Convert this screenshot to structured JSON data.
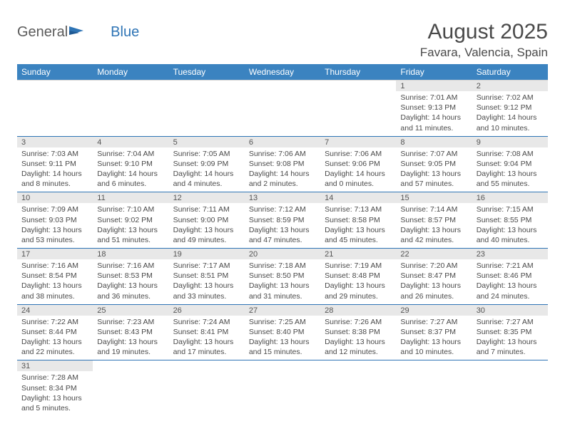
{
  "brand": {
    "part1": "General",
    "part2": "Blue"
  },
  "title": "August 2025",
  "location": "Favara, Valencia, Spain",
  "colors": {
    "header_bg": "#3b83c0",
    "header_text": "#ffffff",
    "daynum_bg": "#e8e8e8",
    "cell_border": "#2e74b5",
    "brand_accent": "#2e74b5",
    "text": "#4a4a4a"
  },
  "weekdays": [
    "Sunday",
    "Monday",
    "Tuesday",
    "Wednesday",
    "Thursday",
    "Friday",
    "Saturday"
  ],
  "weeks": [
    [
      null,
      null,
      null,
      null,
      null,
      {
        "n": "1",
        "sr": "Sunrise: 7:01 AM",
        "ss": "Sunset: 9:13 PM",
        "dl1": "Daylight: 14 hours",
        "dl2": "and 11 minutes."
      },
      {
        "n": "2",
        "sr": "Sunrise: 7:02 AM",
        "ss": "Sunset: 9:12 PM",
        "dl1": "Daylight: 14 hours",
        "dl2": "and 10 minutes."
      }
    ],
    [
      {
        "n": "3",
        "sr": "Sunrise: 7:03 AM",
        "ss": "Sunset: 9:11 PM",
        "dl1": "Daylight: 14 hours",
        "dl2": "and 8 minutes."
      },
      {
        "n": "4",
        "sr": "Sunrise: 7:04 AM",
        "ss": "Sunset: 9:10 PM",
        "dl1": "Daylight: 14 hours",
        "dl2": "and 6 minutes."
      },
      {
        "n": "5",
        "sr": "Sunrise: 7:05 AM",
        "ss": "Sunset: 9:09 PM",
        "dl1": "Daylight: 14 hours",
        "dl2": "and 4 minutes."
      },
      {
        "n": "6",
        "sr": "Sunrise: 7:06 AM",
        "ss": "Sunset: 9:08 PM",
        "dl1": "Daylight: 14 hours",
        "dl2": "and 2 minutes."
      },
      {
        "n": "7",
        "sr": "Sunrise: 7:06 AM",
        "ss": "Sunset: 9:06 PM",
        "dl1": "Daylight: 14 hours",
        "dl2": "and 0 minutes."
      },
      {
        "n": "8",
        "sr": "Sunrise: 7:07 AM",
        "ss": "Sunset: 9:05 PM",
        "dl1": "Daylight: 13 hours",
        "dl2": "and 57 minutes."
      },
      {
        "n": "9",
        "sr": "Sunrise: 7:08 AM",
        "ss": "Sunset: 9:04 PM",
        "dl1": "Daylight: 13 hours",
        "dl2": "and 55 minutes."
      }
    ],
    [
      {
        "n": "10",
        "sr": "Sunrise: 7:09 AM",
        "ss": "Sunset: 9:03 PM",
        "dl1": "Daylight: 13 hours",
        "dl2": "and 53 minutes."
      },
      {
        "n": "11",
        "sr": "Sunrise: 7:10 AM",
        "ss": "Sunset: 9:02 PM",
        "dl1": "Daylight: 13 hours",
        "dl2": "and 51 minutes."
      },
      {
        "n": "12",
        "sr": "Sunrise: 7:11 AM",
        "ss": "Sunset: 9:00 PM",
        "dl1": "Daylight: 13 hours",
        "dl2": "and 49 minutes."
      },
      {
        "n": "13",
        "sr": "Sunrise: 7:12 AM",
        "ss": "Sunset: 8:59 PM",
        "dl1": "Daylight: 13 hours",
        "dl2": "and 47 minutes."
      },
      {
        "n": "14",
        "sr": "Sunrise: 7:13 AM",
        "ss": "Sunset: 8:58 PM",
        "dl1": "Daylight: 13 hours",
        "dl2": "and 45 minutes."
      },
      {
        "n": "15",
        "sr": "Sunrise: 7:14 AM",
        "ss": "Sunset: 8:57 PM",
        "dl1": "Daylight: 13 hours",
        "dl2": "and 42 minutes."
      },
      {
        "n": "16",
        "sr": "Sunrise: 7:15 AM",
        "ss": "Sunset: 8:55 PM",
        "dl1": "Daylight: 13 hours",
        "dl2": "and 40 minutes."
      }
    ],
    [
      {
        "n": "17",
        "sr": "Sunrise: 7:16 AM",
        "ss": "Sunset: 8:54 PM",
        "dl1": "Daylight: 13 hours",
        "dl2": "and 38 minutes."
      },
      {
        "n": "18",
        "sr": "Sunrise: 7:16 AM",
        "ss": "Sunset: 8:53 PM",
        "dl1": "Daylight: 13 hours",
        "dl2": "and 36 minutes."
      },
      {
        "n": "19",
        "sr": "Sunrise: 7:17 AM",
        "ss": "Sunset: 8:51 PM",
        "dl1": "Daylight: 13 hours",
        "dl2": "and 33 minutes."
      },
      {
        "n": "20",
        "sr": "Sunrise: 7:18 AM",
        "ss": "Sunset: 8:50 PM",
        "dl1": "Daylight: 13 hours",
        "dl2": "and 31 minutes."
      },
      {
        "n": "21",
        "sr": "Sunrise: 7:19 AM",
        "ss": "Sunset: 8:48 PM",
        "dl1": "Daylight: 13 hours",
        "dl2": "and 29 minutes."
      },
      {
        "n": "22",
        "sr": "Sunrise: 7:20 AM",
        "ss": "Sunset: 8:47 PM",
        "dl1": "Daylight: 13 hours",
        "dl2": "and 26 minutes."
      },
      {
        "n": "23",
        "sr": "Sunrise: 7:21 AM",
        "ss": "Sunset: 8:46 PM",
        "dl1": "Daylight: 13 hours",
        "dl2": "and 24 minutes."
      }
    ],
    [
      {
        "n": "24",
        "sr": "Sunrise: 7:22 AM",
        "ss": "Sunset: 8:44 PM",
        "dl1": "Daylight: 13 hours",
        "dl2": "and 22 minutes."
      },
      {
        "n": "25",
        "sr": "Sunrise: 7:23 AM",
        "ss": "Sunset: 8:43 PM",
        "dl1": "Daylight: 13 hours",
        "dl2": "and 19 minutes."
      },
      {
        "n": "26",
        "sr": "Sunrise: 7:24 AM",
        "ss": "Sunset: 8:41 PM",
        "dl1": "Daylight: 13 hours",
        "dl2": "and 17 minutes."
      },
      {
        "n": "27",
        "sr": "Sunrise: 7:25 AM",
        "ss": "Sunset: 8:40 PM",
        "dl1": "Daylight: 13 hours",
        "dl2": "and 15 minutes."
      },
      {
        "n": "28",
        "sr": "Sunrise: 7:26 AM",
        "ss": "Sunset: 8:38 PM",
        "dl1": "Daylight: 13 hours",
        "dl2": "and 12 minutes."
      },
      {
        "n": "29",
        "sr": "Sunrise: 7:27 AM",
        "ss": "Sunset: 8:37 PM",
        "dl1": "Daylight: 13 hours",
        "dl2": "and 10 minutes."
      },
      {
        "n": "30",
        "sr": "Sunrise: 7:27 AM",
        "ss": "Sunset: 8:35 PM",
        "dl1": "Daylight: 13 hours",
        "dl2": "and 7 minutes."
      }
    ],
    [
      {
        "n": "31",
        "sr": "Sunrise: 7:28 AM",
        "ss": "Sunset: 8:34 PM",
        "dl1": "Daylight: 13 hours",
        "dl2": "and 5 minutes."
      },
      null,
      null,
      null,
      null,
      null,
      null
    ]
  ]
}
